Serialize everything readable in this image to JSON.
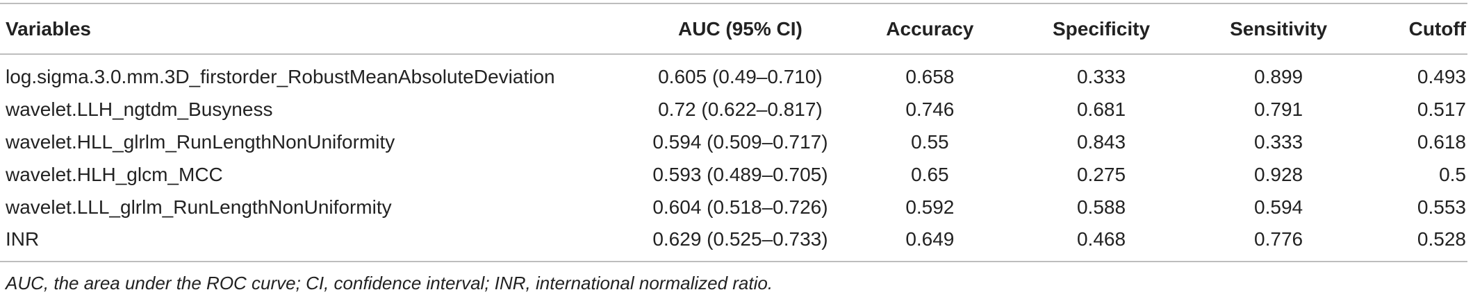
{
  "table": {
    "headers": [
      "Variables",
      "AUC (95% CI)",
      "Accuracy",
      "Specificity",
      "Sensitivity",
      "Cutoff"
    ],
    "rows": [
      [
        "log.sigma.3.0.mm.3D_firstorder_RobustMeanAbsoluteDeviation",
        "0.605 (0.49–0.710)",
        "0.658",
        "0.333",
        "0.899",
        "0.493"
      ],
      [
        "wavelet.LLH_ngtdm_Busyness",
        "0.72 (0.622–0.817)",
        "0.746",
        "0.681",
        "0.791",
        "0.517"
      ],
      [
        "wavelet.HLL_glrlm_RunLengthNonUniformity",
        "0.594 (0.509–0.717)",
        "0.55",
        "0.843",
        "0.333",
        "0.618"
      ],
      [
        "wavelet.HLH_glcm_MCC",
        "0.593 (0.489–0.705)",
        "0.65",
        "0.275",
        "0.928",
        "0.5"
      ],
      [
        "wavelet.LLL_glrlm_RunLengthNonUniformity",
        "0.604 (0.518–0.726)",
        "0.592",
        "0.588",
        "0.594",
        "0.553"
      ],
      [
        "INR",
        "0.629 (0.525–0.733)",
        "0.649",
        "0.468",
        "0.776",
        "0.528"
      ]
    ]
  },
  "footnote": "AUC, the area under the ROC curve; CI, confidence interval; INR, international normalized ratio."
}
